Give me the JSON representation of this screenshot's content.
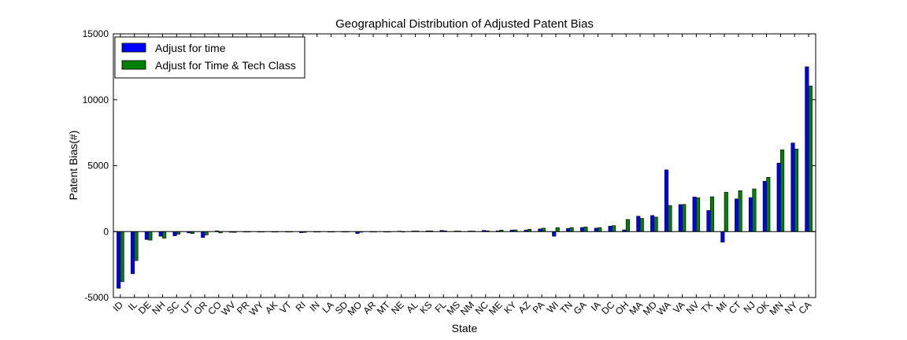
{
  "chart_data": {
    "type": "bar",
    "title": "Geographical Distribution of Adjusted Patent Bias",
    "xlabel": "State",
    "ylabel": "Patent Bias(#)",
    "ylim": [
      -5000,
      15000
    ],
    "yticks": [
      -5000,
      0,
      5000,
      10000,
      15000
    ],
    "grid": false,
    "legend_position": "top-left",
    "categories": [
      "ID",
      "IL",
      "DE",
      "NH",
      "SC",
      "UT",
      "OR",
      "CO",
      "WV",
      "PR",
      "WY",
      "AK",
      "VT",
      "RI",
      "IN",
      "LA",
      "SD",
      "MO",
      "AR",
      "MT",
      "NE",
      "AL",
      "KS",
      "FL",
      "MS",
      "NM",
      "NC",
      "ME",
      "KY",
      "AZ",
      "PA",
      "WI",
      "TN",
      "GA",
      "IA",
      "DC",
      "OH",
      "MA",
      "MD",
      "WA",
      "VA",
      "NV",
      "TX",
      "MI",
      "CT",
      "NJ",
      "OK",
      "MN",
      "NY",
      "CA"
    ],
    "series": [
      {
        "name": "Adjust for time",
        "color": "#0000ff",
        "values": [
          -4300,
          -3200,
          -600,
          -350,
          -320,
          -100,
          -450,
          60,
          -50,
          -30,
          -20,
          -20,
          -30,
          -80,
          -30,
          -20,
          -20,
          -150,
          -20,
          -20,
          30,
          40,
          50,
          90,
          40,
          40,
          90,
          60,
          120,
          120,
          200,
          -350,
          230,
          310,
          260,
          410,
          130,
          1170,
          1220,
          4680,
          2050,
          2620,
          1600,
          -800,
          2480,
          2580,
          3820,
          5200,
          6720,
          12500
        ]
      },
      {
        "name": "Adjust for Time & Tech Class",
        "color": "#008000",
        "values": [
          -3800,
          -2200,
          -650,
          -500,
          -200,
          -150,
          -250,
          -100,
          -60,
          -30,
          -20,
          -20,
          -30,
          -60,
          -30,
          -20,
          -20,
          -50,
          -20,
          -20,
          -30,
          40,
          50,
          50,
          40,
          40,
          60,
          110,
          130,
          180,
          260,
          300,
          310,
          350,
          300,
          450,
          920,
          1000,
          1100,
          1980,
          2060,
          2570,
          2640,
          2990,
          3100,
          3240,
          4120,
          6200,
          6260,
          11050
        ]
      }
    ]
  }
}
